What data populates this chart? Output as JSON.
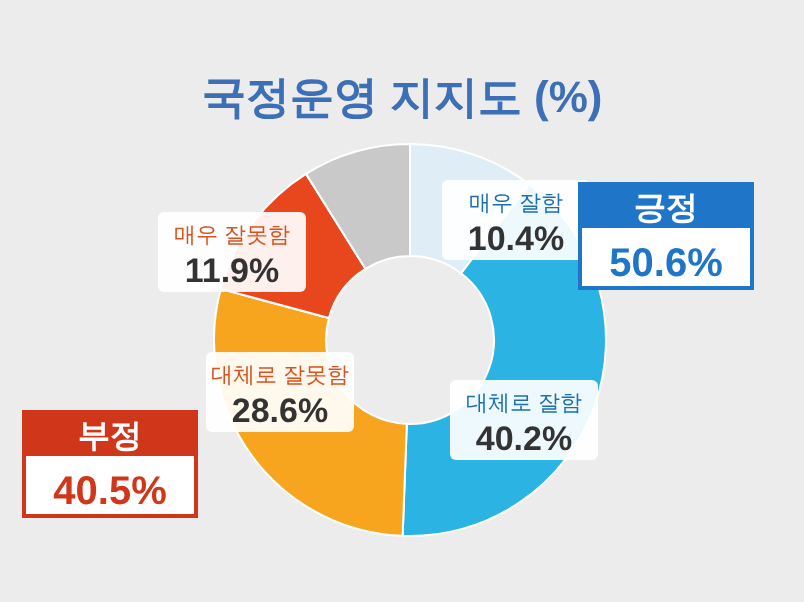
{
  "chart_data": {
    "type": "donut",
    "title": "국정운영 지지도 (%)",
    "categories": [
      "매우 잘함",
      "대체로 잘함",
      "대체로 잘못함",
      "매우 잘못함",
      null
    ],
    "values": [
      10.4,
      40.2,
      28.6,
      11.9,
      8.9
    ],
    "value_labels": [
      "10.4%",
      "40.2%",
      "28.6%",
      "11.9%",
      null
    ],
    "colors": [
      "#dfeef6",
      "#2bb3e3",
      "#f7a51e",
      "#e8461c",
      "#c9c9c9"
    ],
    "annotations": [
      "긍정 50.6%",
      "부정 40.5%"
    ]
  }
}
